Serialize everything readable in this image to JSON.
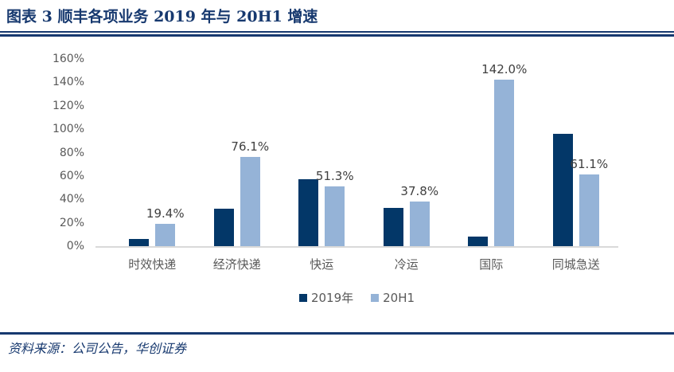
{
  "header": {
    "title": "图表 3  顺丰各项业务 2019 年与 20H1 增速"
  },
  "footer": {
    "source": "资料来源：公司公告，华创证券"
  },
  "colors": {
    "navy_accent": "#17396f",
    "bar_dark_blue": "#033768",
    "bar_light_blue": "#95b3d7",
    "axis_text": "#595959",
    "data_label_text": "#404040",
    "baseline_gray": "#d9d9d9"
  },
  "chart_data": {
    "type": "bar",
    "title": "顺丰各项业务 2019 年与 20H1 增速",
    "categories": [
      "时效快递",
      "经济快递",
      "快运",
      "冷运",
      "国际",
      "同城急送"
    ],
    "series": [
      {
        "name": "2019年",
        "color": "#033768",
        "values": [
          6,
          32,
          57,
          33,
          8,
          96
        ],
        "data_labels": null
      },
      {
        "name": "20H1",
        "color": "#95b3d7",
        "values": [
          19.4,
          76.1,
          51.3,
          37.8,
          142.0,
          61.1
        ],
        "data_labels": [
          "19.4%",
          "76.1%",
          "51.3%",
          "37.8%",
          "142.0%",
          "61.1%"
        ]
      }
    ],
    "xlabel": "",
    "ylabel": "",
    "ylim": [
      0,
      160
    ],
    "ytick_step": 20,
    "ytick_labels": [
      "0%",
      "20%",
      "40%",
      "60%",
      "80%",
      "100%",
      "120%",
      "140%",
      "160%"
    ],
    "grid": false,
    "legend_position": "bottom"
  }
}
